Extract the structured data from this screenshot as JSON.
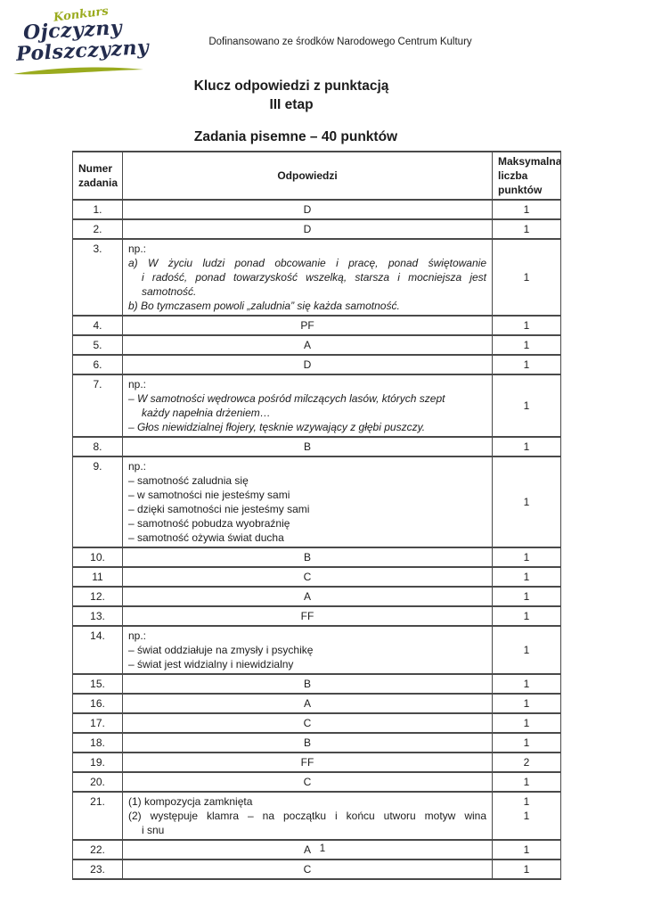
{
  "page": {
    "funding_note": "Dofinansowano ze środków Narodowego Centrum Kultury",
    "title": "Klucz odpowiedzi z punktacją",
    "subtitle": "III etap",
    "section_title": "Zadania pisemne – 40 punktów",
    "page_number": "1"
  },
  "logo": {
    "word_top": "Konkurs",
    "word_main1": "Ojczyzny",
    "word_main2": "Polszczyzny",
    "accent_color": "#9aab1e",
    "text_color": "#232c4e"
  },
  "table": {
    "headers": {
      "number": "Numer\nzadania",
      "answers": "Odpowiedzi",
      "max_points": "Maksymalna\nliczba\npunktów"
    },
    "rows": [
      {
        "num": "1.",
        "answer": "D",
        "points": "1"
      },
      {
        "num": "2.",
        "answer": "D",
        "points": "1"
      },
      {
        "num": "3.",
        "points": "1",
        "lines": [
          {
            "text": "np.:"
          },
          {
            "text": "a) W życiu ludzi ponad obcowanie i pracę, ponad świętowanie",
            "italic": true,
            "stretch": true
          },
          {
            "text": "i radość, ponad towarzyskość wszelką, starsza i mocniejsza jest",
            "italic": true,
            "stretch": true,
            "indent": true
          },
          {
            "text": "samotność.",
            "italic": true,
            "indent": true
          },
          {
            "text": "b) Bo tymczasem powoli „zaludnia” się każda samotność.",
            "italic": true
          }
        ]
      },
      {
        "num": "4.",
        "answer": "PF",
        "points": "1"
      },
      {
        "num": "5.",
        "answer": "A",
        "points": "1"
      },
      {
        "num": "6.",
        "answer": "D",
        "points": "1"
      },
      {
        "num": "7.",
        "points": "1",
        "lines": [
          {
            "text": "np.:"
          },
          {
            "text": "– W samotności wędrowca pośród milczących lasów, których szept",
            "italic": true
          },
          {
            "text": "każdy napełnia drżeniem…",
            "italic": true,
            "indent": true
          },
          {
            "text": "– Głos niewidzialnej fłojery, tęsknie wzywający z głębi puszczy.",
            "italic": true
          }
        ]
      },
      {
        "num": "8.",
        "answer": "B",
        "points": "1"
      },
      {
        "num": "9.",
        "points": "1",
        "lines": [
          {
            "text": "np.:"
          },
          {
            "text": "– samotność zaludnia się"
          },
          {
            "text": "– w samotności nie jesteśmy sami"
          },
          {
            "text": "– dzięki samotności nie jesteśmy sami"
          },
          {
            "text": "– samotność pobudza wyobraźnię"
          },
          {
            "text": "– samotność ożywia świat ducha"
          }
        ]
      },
      {
        "num": "10.",
        "answer": "B",
        "points": "1"
      },
      {
        "num": "11",
        "answer": "C",
        "points": "1"
      },
      {
        "num": "12.",
        "answer": "A",
        "points": "1"
      },
      {
        "num": "13.",
        "answer": "FF",
        "points": "1"
      },
      {
        "num": "14.",
        "points": "1",
        "lines": [
          {
            "text": "np.:"
          },
          {
            "text": "– świat oddziałuje na zmysły i psychikę"
          },
          {
            "text": "– świat jest widzialny i niewidzialny"
          }
        ]
      },
      {
        "num": "15.",
        "answer": "B",
        "points": "1"
      },
      {
        "num": "16.",
        "answer": "A",
        "points": "1"
      },
      {
        "num": "17.",
        "answer": "C",
        "points": "1"
      },
      {
        "num": "18.",
        "answer": "B",
        "points": "1"
      },
      {
        "num": "19.",
        "answer": "FF",
        "points": "2"
      },
      {
        "num": "20.",
        "answer": "C",
        "points": "1"
      },
      {
        "num": "21.",
        "points": [
          "1",
          "1"
        ],
        "lines": [
          {
            "text": "(1) kompozycja zamknięta"
          },
          {
            "text": "(2) występuje klamra – na początku i końcu utworu motyw wina",
            "stretch": true
          },
          {
            "text": "i snu",
            "indent": true
          }
        ]
      },
      {
        "num": "22.",
        "answer": "A",
        "points": "1"
      },
      {
        "num": "23.",
        "answer": "C",
        "points": "1"
      }
    ]
  }
}
